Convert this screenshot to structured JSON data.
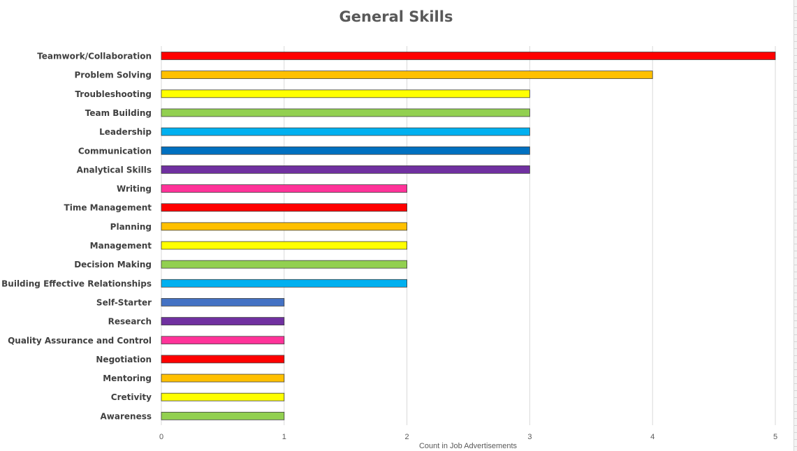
{
  "chart_data": {
    "type": "bar",
    "orientation": "horizontal",
    "title": "General Skills",
    "xlabel": "Count in Job Advertisements",
    "ylabel": "",
    "xlim": [
      0,
      5
    ],
    "x_ticks": [
      "0",
      "1",
      "2",
      "3",
      "4",
      "5"
    ],
    "grid": "vertical",
    "legend": "none",
    "categories": [
      "Teamwork/Collaboration",
      "Problem Solving",
      "Troubleshooting",
      "Team Building",
      "Leadership",
      "Communication",
      "Analytical Skills",
      "Writing",
      "Time Management",
      "Planning",
      "Management",
      "Decision Making",
      "Building Effective Relationships",
      "Self-Starter",
      "Research",
      "Quality Assurance and Control",
      "Negotiation",
      "Mentoring",
      "Cretivity",
      "Awareness"
    ],
    "values": [
      5,
      4,
      3,
      3,
      3,
      3,
      3,
      2,
      2,
      2,
      2,
      2,
      2,
      1,
      1,
      1,
      1,
      1,
      1,
      1
    ],
    "colors": [
      "#ff0000",
      "#ffc000",
      "#ffff00",
      "#92d050",
      "#00b0f0",
      "#0070c0",
      "#7030a0",
      "#ff3399",
      "#ff0000",
      "#ffc000",
      "#ffff00",
      "#92d050",
      "#00b0f0",
      "#4472c4",
      "#7030a0",
      "#ff3399",
      "#ff0000",
      "#ffc000",
      "#ffff00",
      "#92d050"
    ]
  }
}
